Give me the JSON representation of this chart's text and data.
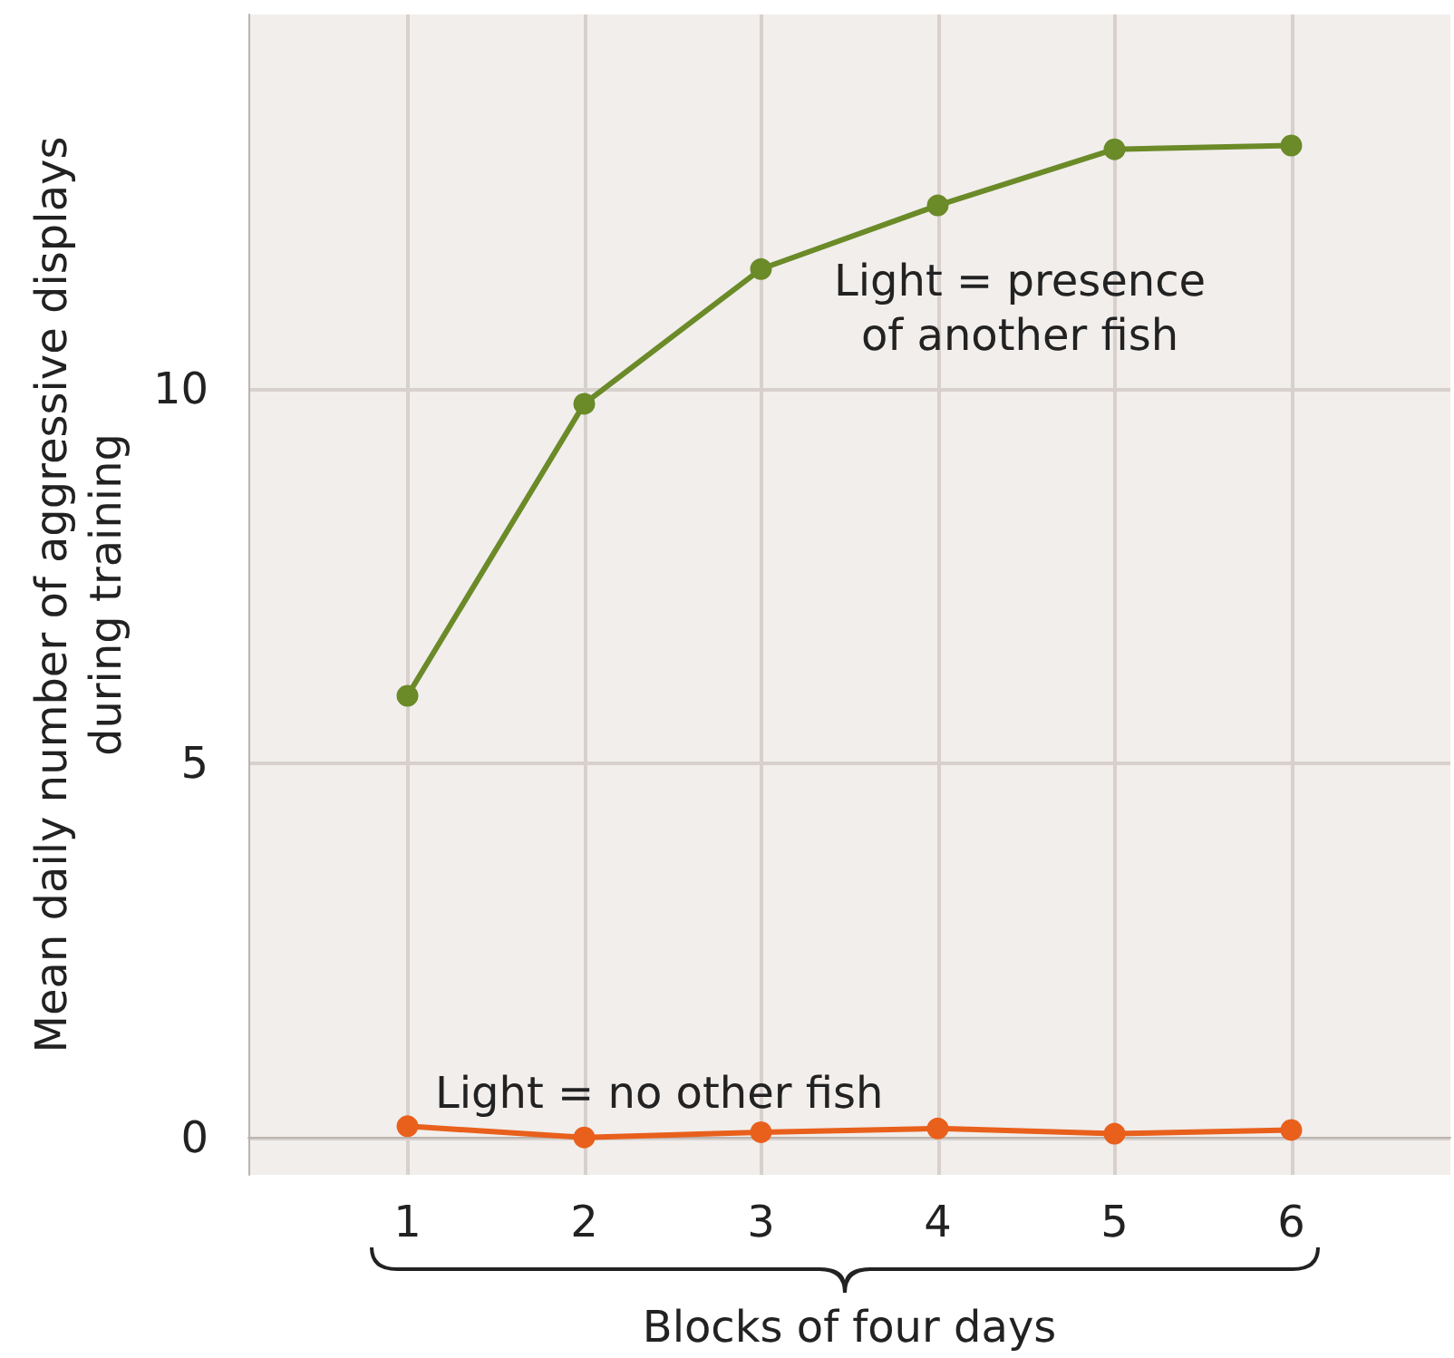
{
  "chart_data": {
    "type": "line",
    "xlabel": "Blocks of four days",
    "ylabel": "Mean daily number of aggressive displays\nduring training",
    "x": [
      1,
      2,
      3,
      4,
      5,
      6
    ],
    "series": [
      {
        "color": "#6b8a28",
        "values": [
          5.9,
          9.8,
          11.6,
          12.45,
          13.2,
          13.25
        ]
      },
      {
        "color": "#e8601c",
        "values": [
          0.15,
          0,
          0.07,
          0.12,
          0.05,
          0.1
        ]
      }
    ],
    "xlim": [
      0.1,
      6.9
    ],
    "xticks": [
      1,
      2,
      3,
      4,
      5,
      6
    ],
    "ylim": [
      -0.5,
      15
    ],
    "yticks": [
      0,
      5,
      10
    ],
    "grid": true,
    "marker": "circle",
    "line_style": "solid",
    "annotations": [
      "Light = presence\nof another fish",
      "Light = no other fish"
    ]
  }
}
